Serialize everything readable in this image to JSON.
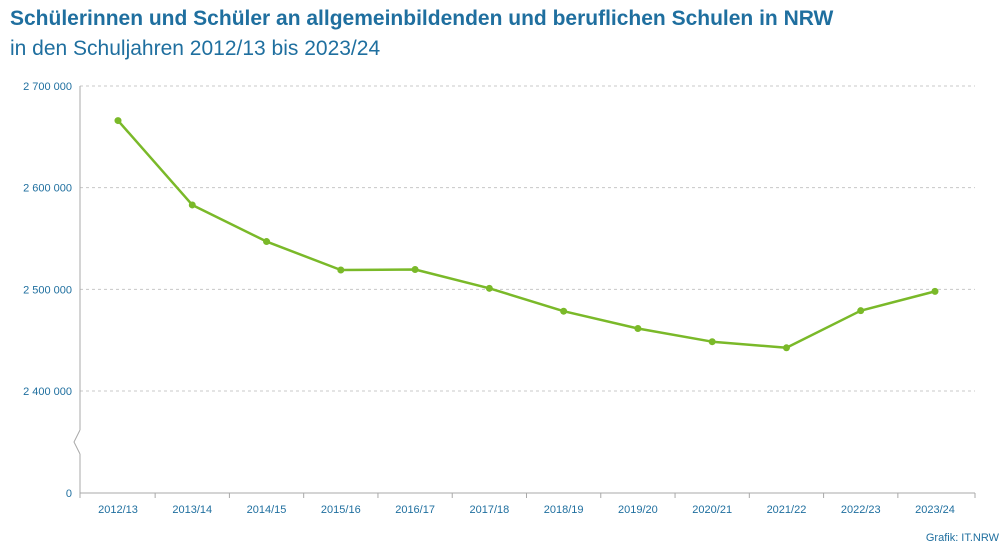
{
  "title": "Schülerinnen und Schüler an allgemeinbildenden und beruflichen Schulen in NRW",
  "subtitle": "in den Schuljahren 2012/13 bis 2023/24",
  "source": "Grafik: IT.NRW",
  "colors": {
    "line": "#7ab929",
    "text": "#1f6f9f",
    "grid": "#c8c8c8",
    "axis": "#a9a9a9"
  },
  "chart_data": {
    "type": "line",
    "title": "Schülerinnen und Schüler an allgemeinbildenden und beruflichen Schulen in NRW",
    "subtitle": "in den Schuljahren 2012/13 bis 2023/24",
    "categories": [
      "2012/13",
      "2013/14",
      "2014/15",
      "2015/16",
      "2016/17",
      "2017/18",
      "2018/19",
      "2019/20",
      "2020/21",
      "2021/22",
      "2022/23",
      "2023/24"
    ],
    "series": [
      {
        "values": [
          2666000,
          2583000,
          2547000,
          2519000,
          2519500,
          2501000,
          2478500,
          2461500,
          2448500,
          2442500,
          2479000,
          2498000
        ]
      }
    ],
    "yticks": [
      0,
      2400000,
      2500000,
      2600000,
      2700000
    ],
    "ytick_labels": [
      "0",
      "2 400 000",
      "2 500 000",
      "2 600 000",
      "2 700 000"
    ],
    "ylim": [
      2340000,
      2700000
    ],
    "axis_break": true,
    "grid": true,
    "xlabel": "",
    "ylabel": ""
  }
}
